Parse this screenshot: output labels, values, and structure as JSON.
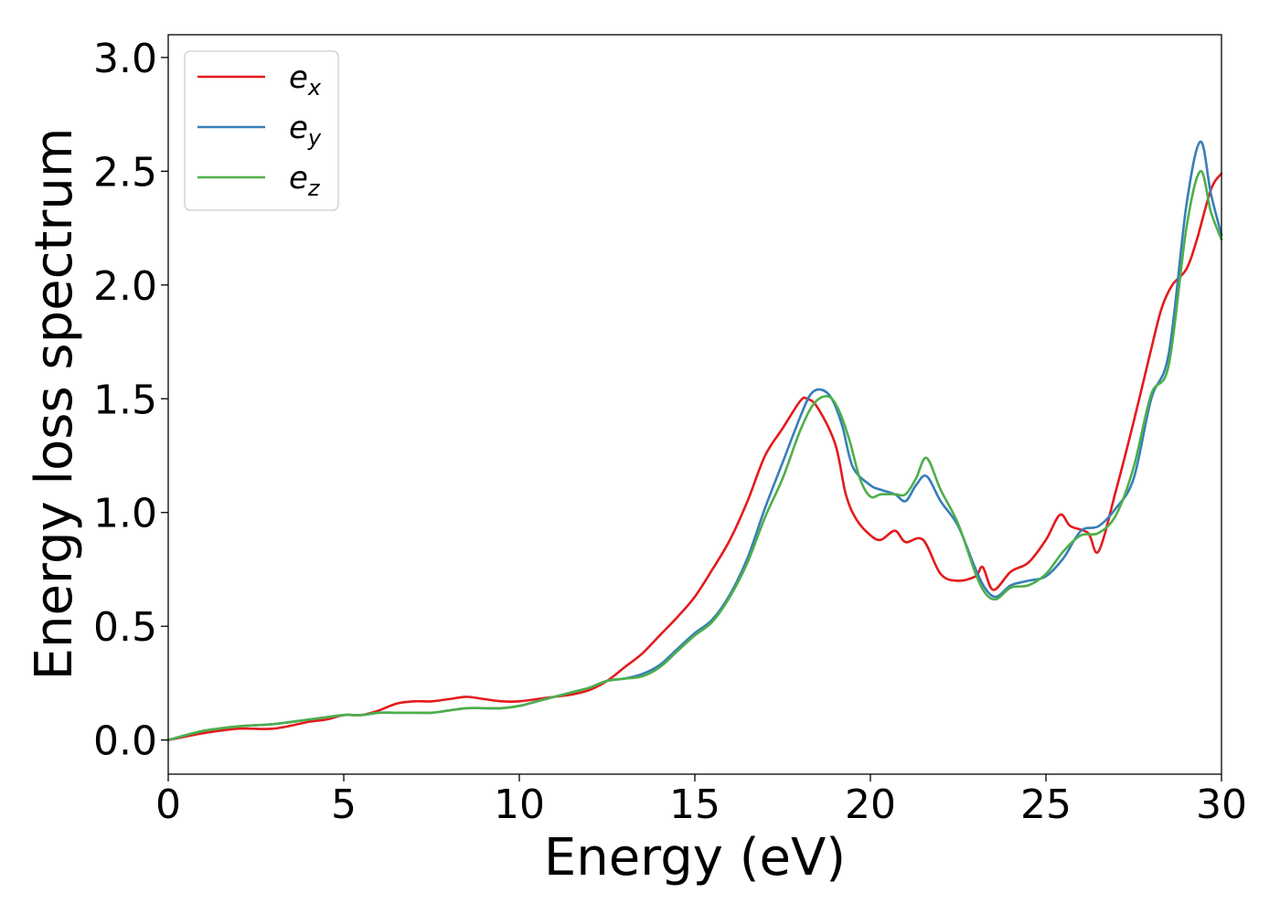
{
  "chart_data": {
    "type": "line",
    "xlabel": "Energy (eV)",
    "ylabel": "Energy loss spectrum",
    "xlim": [
      0,
      30
    ],
    "ylim": [
      -0.15,
      3.1
    ],
    "xticks": [
      0,
      5,
      10,
      15,
      20,
      25,
      30
    ],
    "yticks": [
      0.0,
      0.5,
      1.0,
      1.5,
      2.0,
      2.5,
      3.0
    ],
    "xtick_labels": [
      "0",
      "5",
      "10",
      "15",
      "20",
      "25",
      "30"
    ],
    "ytick_labels": [
      "0.0",
      "0.5",
      "1.0",
      "1.5",
      "2.0",
      "2.5",
      "3.0"
    ],
    "grid": false,
    "legend_position": "top-left",
    "series": [
      {
        "name": "e_x",
        "base": "e",
        "sub": "x",
        "color": "#e41a1c",
        "x": [
          0,
          1,
          2,
          3,
          4,
          4.5,
          5,
          5.5,
          6,
          6.5,
          7,
          7.5,
          8,
          8.5,
          9,
          9.5,
          10,
          10.5,
          11,
          11.5,
          12,
          12.5,
          13,
          13.5,
          14,
          14.5,
          15,
          15.5,
          16,
          16.5,
          17,
          17.5,
          18,
          18.2,
          18.5,
          19,
          19.3,
          19.6,
          20,
          20.3,
          20.7,
          21,
          21.5,
          22,
          22.5,
          23,
          23.2,
          23.5,
          24,
          24.5,
          25,
          25.4,
          25.7,
          26.2,
          26.5,
          27,
          27.5,
          28,
          28.3,
          28.6,
          29,
          29.3,
          29.7,
          30
        ],
        "y": [
          0.0,
          0.03,
          0.05,
          0.05,
          0.08,
          0.09,
          0.11,
          0.11,
          0.13,
          0.16,
          0.17,
          0.17,
          0.18,
          0.19,
          0.18,
          0.17,
          0.17,
          0.18,
          0.19,
          0.2,
          0.22,
          0.26,
          0.32,
          0.38,
          0.46,
          0.54,
          0.63,
          0.75,
          0.88,
          1.05,
          1.25,
          1.37,
          1.49,
          1.5,
          1.46,
          1.3,
          1.08,
          0.97,
          0.9,
          0.88,
          0.92,
          0.87,
          0.88,
          0.73,
          0.7,
          0.72,
          0.76,
          0.66,
          0.74,
          0.78,
          0.88,
          0.99,
          0.94,
          0.91,
          0.83,
          1.1,
          1.4,
          1.72,
          1.9,
          2.0,
          2.07,
          2.2,
          2.42,
          2.49
        ]
      },
      {
        "name": "e_y",
        "base": "e",
        "sub": "y",
        "color": "#377eb8",
        "x": [
          0,
          1,
          2,
          3,
          4,
          4.5,
          5,
          5.5,
          6,
          6.5,
          7,
          7.5,
          8,
          8.5,
          9,
          9.5,
          10,
          10.5,
          11,
          11.5,
          12,
          12.5,
          13,
          13.5,
          14,
          14.5,
          15,
          15.5,
          16,
          16.5,
          17,
          17.5,
          18,
          18.3,
          18.6,
          18.9,
          19.2,
          19.5,
          20,
          20.3,
          20.7,
          21,
          21.3,
          21.6,
          22,
          22.5,
          23,
          23.3,
          23.6,
          24,
          24.5,
          25,
          25.5,
          26,
          26.5,
          27,
          27.5,
          28,
          28.5,
          29,
          29.4,
          29.7,
          30
        ],
        "y": [
          0.0,
          0.04,
          0.06,
          0.07,
          0.09,
          0.1,
          0.11,
          0.11,
          0.12,
          0.12,
          0.12,
          0.12,
          0.13,
          0.14,
          0.14,
          0.14,
          0.15,
          0.17,
          0.19,
          0.21,
          0.23,
          0.26,
          0.27,
          0.29,
          0.33,
          0.4,
          0.47,
          0.53,
          0.64,
          0.8,
          1.02,
          1.22,
          1.42,
          1.52,
          1.54,
          1.5,
          1.38,
          1.2,
          1.12,
          1.1,
          1.08,
          1.05,
          1.12,
          1.16,
          1.05,
          0.94,
          0.75,
          0.66,
          0.63,
          0.68,
          0.7,
          0.72,
          0.8,
          0.92,
          0.94,
          1.02,
          1.15,
          1.5,
          1.7,
          2.35,
          2.63,
          2.4,
          2.22
        ]
      },
      {
        "name": "e_z",
        "base": "e",
        "sub": "z",
        "color": "#4daf4a",
        "x": [
          0,
          1,
          2,
          3,
          4,
          4.5,
          5,
          5.5,
          6,
          6.5,
          7,
          7.5,
          8,
          8.5,
          9,
          9.5,
          10,
          10.5,
          11,
          11.5,
          12,
          12.5,
          13,
          13.5,
          14,
          14.5,
          15,
          15.5,
          16,
          16.5,
          17,
          17.5,
          18,
          18.4,
          18.8,
          19.1,
          19.4,
          19.7,
          20,
          20.3,
          20.7,
          21,
          21.3,
          21.6,
          22,
          22.5,
          23,
          23.3,
          23.6,
          24,
          24.5,
          25,
          25.5,
          26,
          26.5,
          27,
          27.5,
          28,
          28.5,
          29,
          29.4,
          29.7,
          30
        ],
        "y": [
          0.0,
          0.04,
          0.06,
          0.07,
          0.09,
          0.1,
          0.11,
          0.11,
          0.12,
          0.12,
          0.12,
          0.12,
          0.13,
          0.14,
          0.14,
          0.14,
          0.15,
          0.17,
          0.19,
          0.21,
          0.23,
          0.26,
          0.27,
          0.28,
          0.32,
          0.39,
          0.46,
          0.52,
          0.63,
          0.78,
          0.98,
          1.15,
          1.36,
          1.48,
          1.51,
          1.45,
          1.32,
          1.15,
          1.07,
          1.08,
          1.08,
          1.08,
          1.15,
          1.24,
          1.1,
          0.95,
          0.73,
          0.64,
          0.62,
          0.67,
          0.68,
          0.73,
          0.83,
          0.9,
          0.91,
          0.99,
          1.2,
          1.52,
          1.65,
          2.25,
          2.5,
          2.32,
          2.2
        ]
      }
    ]
  }
}
